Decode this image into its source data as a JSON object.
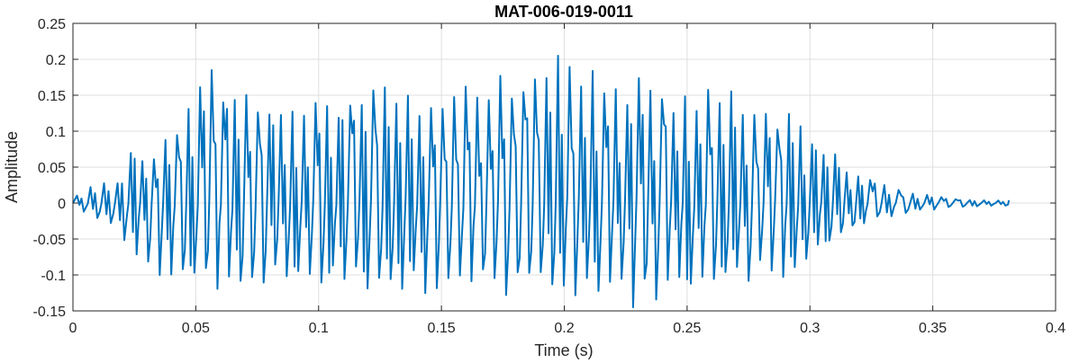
{
  "chart_data": {
    "type": "line",
    "title": "MAT-006-019-0011",
    "xlabel": "Time (s)",
    "ylabel": "Amplitude",
    "xlim": [
      0,
      0.4
    ],
    "ylim": [
      -0.15,
      0.25
    ],
    "grid": true,
    "x_ticks": [
      0,
      0.05,
      0.1,
      0.15,
      0.2,
      0.25,
      0.3,
      0.35,
      0.4
    ],
    "x_tick_labels": [
      "0",
      "0.05",
      "0.1",
      "0.15",
      "0.2",
      "0.25",
      "0.3",
      "0.35",
      "0.4"
    ],
    "y_ticks": [
      -0.15,
      -0.1,
      -0.05,
      0,
      0.05,
      0.1,
      0.15,
      0.2,
      0.25
    ],
    "y_tick_labels": [
      "-0.15",
      "-0.1",
      "-0.05",
      "0",
      "0.05",
      "0.1",
      "0.15",
      "0.2",
      "0.25"
    ],
    "series": [
      {
        "color": "#0072BD",
        "x_range": [
          0,
          0.381
        ],
        "envelope": {
          "t": [
            0,
            0.01,
            0.02,
            0.022,
            0.03,
            0.04,
            0.05,
            0.055,
            0.06,
            0.08,
            0.1,
            0.12,
            0.15,
            0.17,
            0.2,
            0.22,
            0.25,
            0.27,
            0.28,
            0.29,
            0.3,
            0.31,
            0.32,
            0.33,
            0.34,
            0.35,
            0.36,
            0.381
          ],
          "upper": [
            0.01,
            0.03,
            0.04,
            0.085,
            0.07,
            0.12,
            0.17,
            0.185,
            0.18,
            0.16,
            0.165,
            0.16,
            0.17,
            0.18,
            0.205,
            0.185,
            0.17,
            0.16,
            0.15,
            0.13,
            0.1,
            0.07,
            0.045,
            0.025,
            0.015,
            0.01,
            0.006,
            0.004
          ],
          "lower": [
            -0.012,
            -0.03,
            -0.06,
            -0.08,
            -0.1,
            -0.11,
            -0.12,
            -0.13,
            -0.125,
            -0.12,
            -0.12,
            -0.12,
            -0.13,
            -0.13,
            -0.13,
            -0.145,
            -0.13,
            -0.12,
            -0.11,
            -0.1,
            -0.08,
            -0.055,
            -0.03,
            -0.02,
            -0.012,
            -0.008,
            -0.005,
            -0.004
          ]
        },
        "peak_points": [
          {
            "x": 0.055,
            "y": 0.185
          },
          {
            "x": 0.1985,
            "y": 0.205
          },
          {
            "x": 0.226,
            "y": -0.145
          }
        ]
      }
    ]
  }
}
